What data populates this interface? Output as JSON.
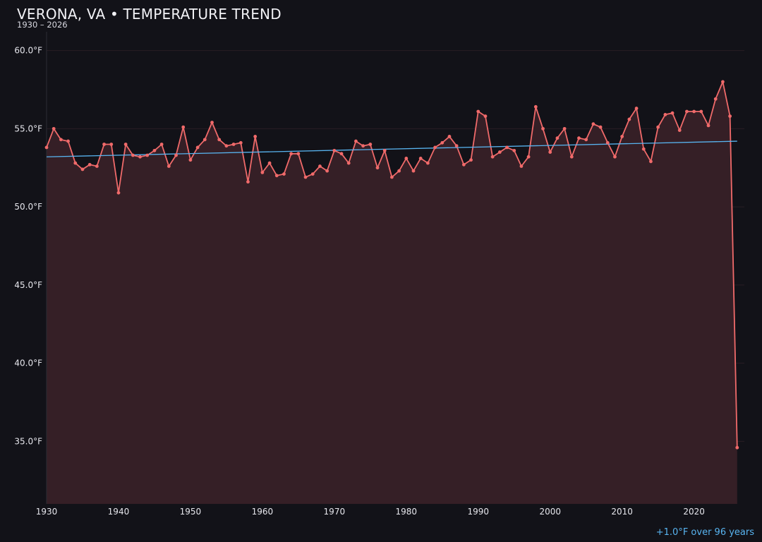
{
  "header": {
    "title": "VERONA, VA • TEMPERATURE TREND",
    "subtitle": "1930 – 2026"
  },
  "footer": {
    "trend_summary": "+1.0°F over 96 years"
  },
  "colors": {
    "background": "#121218",
    "series": "#f06a6a",
    "area_fill": "#351f26",
    "trend": "#58b4f0",
    "grid": "#2a1e24",
    "axis_text": "#e6e6ec"
  },
  "chart_data": {
    "type": "line",
    "title": "VERONA, VA • TEMPERATURE TREND",
    "subtitle": "1930 – 2026",
    "xlabel": "",
    "ylabel": "",
    "x_range": [
      1930,
      2027
    ],
    "y_range": [
      31,
      61.2
    ],
    "x_ticks": [
      1930,
      1940,
      1950,
      1960,
      1970,
      1980,
      1990,
      2000,
      2010,
      2020
    ],
    "x_tick_labels": [
      "1930",
      "1940",
      "1950",
      "1960",
      "1970",
      "1980",
      "1990",
      "2000",
      "2010",
      "2020"
    ],
    "y_ticks": [
      35,
      40,
      45,
      50,
      55,
      60
    ],
    "y_tick_labels": [
      "35.0°F",
      "40.0°F",
      "45.0°F",
      "50.0°F",
      "55.0°F",
      "60.0°F"
    ],
    "grid": true,
    "area_filled": true,
    "series": [
      {
        "x": [
          1930,
          1931,
          1932,
          1933,
          1934,
          1935,
          1936,
          1937,
          1938,
          1939,
          1940,
          1941,
          1942,
          1943,
          1944,
          1945,
          1946,
          1947,
          1948,
          1949,
          1950,
          1951,
          1952,
          1953,
          1954,
          1955,
          1956,
          1957,
          1958,
          1959,
          1960,
          1961,
          1962,
          1963,
          1964,
          1965,
          1966,
          1967,
          1968,
          1969,
          1970,
          1971,
          1972,
          1973,
          1974,
          1975,
          1976,
          1977,
          1978,
          1979,
          1980,
          1981,
          1982,
          1983,
          1984,
          1985,
          1986,
          1987,
          1988,
          1989,
          1990,
          1991,
          1992,
          1993,
          1994,
          1995,
          1996,
          1997,
          1998,
          1999,
          2000,
          2001,
          2002,
          2003,
          2004,
          2005,
          2006,
          2007,
          2008,
          2009,
          2010,
          2011,
          2012,
          2013,
          2014,
          2015,
          2016,
          2017,
          2018,
          2019,
          2020,
          2021,
          2022,
          2023,
          2024,
          2025,
          2026
        ],
        "values": [
          53.8,
          55.0,
          54.3,
          54.2,
          52.8,
          52.4,
          52.7,
          52.6,
          54.0,
          54.0,
          50.9,
          54.0,
          53.3,
          53.2,
          53.3,
          53.6,
          54.0,
          52.6,
          53.3,
          55.1,
          53.0,
          53.8,
          54.3,
          55.4,
          54.3,
          53.9,
          54.0,
          54.1,
          51.6,
          54.5,
          52.2,
          52.8,
          52.0,
          52.1,
          53.4,
          53.4,
          51.9,
          52.1,
          52.6,
          52.3,
          53.6,
          53.4,
          52.8,
          54.2,
          53.9,
          54.0,
          52.5,
          53.6,
          51.9,
          52.3,
          53.1,
          52.3,
          53.1,
          52.8,
          53.8,
          54.1,
          54.5,
          53.9,
          52.7,
          53.0,
          56.1,
          55.8,
          53.2,
          53.5,
          53.8,
          53.6,
          52.6,
          53.2,
          56.4,
          55.0,
          53.5,
          54.4,
          55.0,
          53.2,
          54.4,
          54.3,
          55.3,
          55.1,
          54.1,
          53.2,
          54.5,
          55.6,
          56.3,
          53.7,
          52.9,
          55.1,
          55.9,
          56.0,
          54.9,
          56.1,
          56.1,
          56.1,
          55.2,
          56.9,
          58.0,
          55.8,
          34.6
        ]
      }
    ],
    "trend_line": {
      "x": [
        1930,
        2026
      ],
      "values": [
        53.2,
        54.2
      ]
    }
  }
}
